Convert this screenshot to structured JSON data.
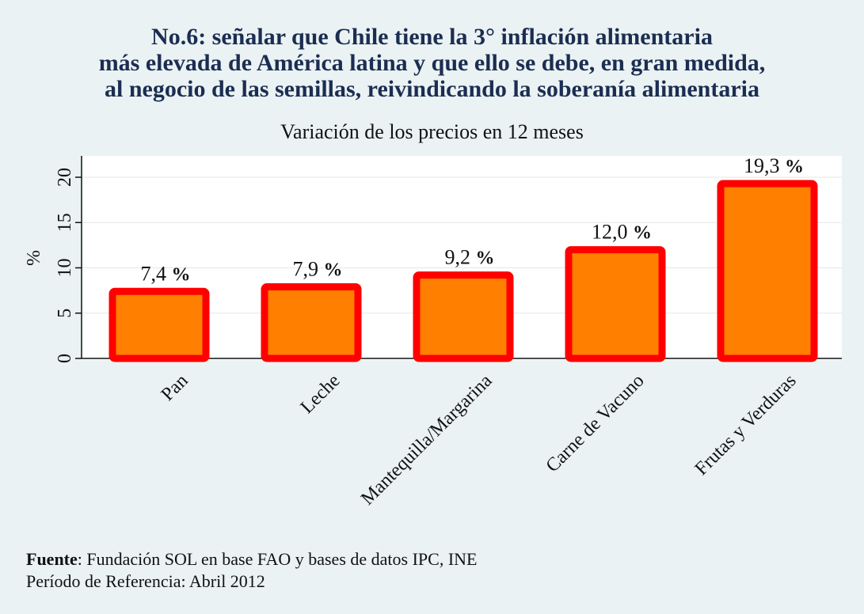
{
  "title_lines": [
    "No.6: señalar que Chile tiene la 3° inflación alimentaria",
    "más elevada de América latina y que ello se debe, en gran medida,",
    "al negocio de las semillas, reivindicando la soberanía alimentaria"
  ],
  "footer": {
    "source_label": "Fuente",
    "source_text": ": Fundación SOL en base FAO y bases de datos IPC, INE",
    "period_text": "Período de Referencia: Abril 2012"
  },
  "chart_data": {
    "type": "bar",
    "title": "Variación de los precios en 12 meses",
    "ylabel": "%",
    "xlabel": "",
    "ylim": [
      0,
      22
    ],
    "yticks": [
      0,
      5,
      10,
      15,
      20
    ],
    "grid": true,
    "categories": [
      "Pan",
      "Leche",
      "Mantequilla/Margarina",
      "Carne de Vacuno",
      "Frutas y Verduras"
    ],
    "values": [
      7.4,
      7.9,
      9.2,
      12.0,
      19.3
    ],
    "value_labels": [
      "7,4",
      "7,9",
      "9,2",
      "12,0",
      "19,3"
    ],
    "value_suffix": "%",
    "colors": {
      "bar_fill": "#ff7f00",
      "bar_border": "#ff0000",
      "grid": "#e6e6e6",
      "plot_bg": "#ffffff"
    }
  }
}
